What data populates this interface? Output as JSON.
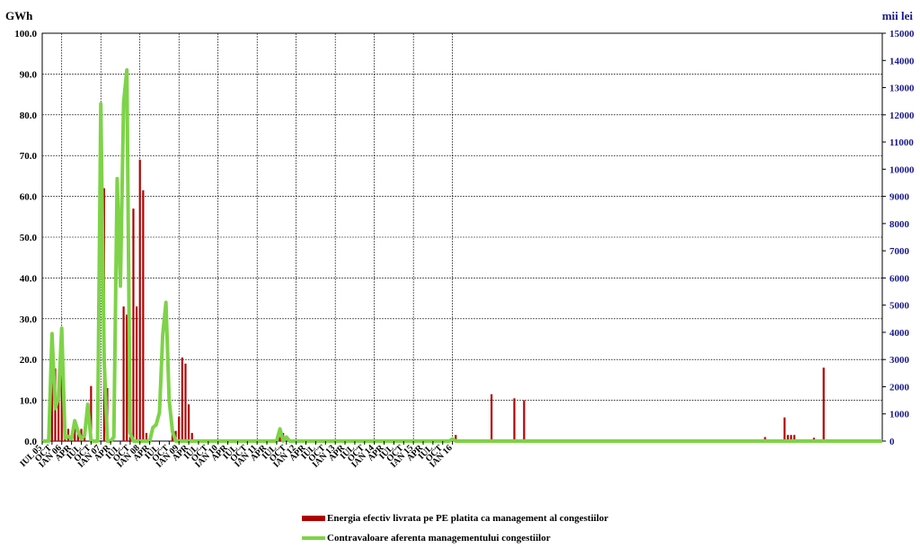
{
  "colors": {
    "bars": "#b00000",
    "line": "#7ed348",
    "right_axis": "#1a1a8c",
    "grid": "#000000"
  },
  "chart_data": {
    "type": "bar+line",
    "title": "",
    "y_left_label": "GWh",
    "y_right_label": "mii lei",
    "y_left_lim": [
      0,
      100
    ],
    "y_right_lim": [
      0,
      15000
    ],
    "y_left_ticks": [
      "0.0",
      "10.0",
      "20.0",
      "30.0",
      "40.0",
      "50.0",
      "60.0",
      "70.0",
      "80.0",
      "90.0",
      "100.0"
    ],
    "y_right_ticks": [
      "0",
      "1000",
      "2000",
      "3000",
      "4000",
      "5000",
      "6000",
      "7000",
      "8000",
      "9000",
      "10000",
      "11000",
      "12000",
      "13000",
      "14000",
      "15000"
    ],
    "x_ticks": [
      {
        "label": "IUL 05",
        "index": 0
      },
      {
        "label": "OCT",
        "index": 3
      },
      {
        "label": "IAN 06",
        "index": 6
      },
      {
        "label": "APR",
        "index": 9
      },
      {
        "label": "IUL",
        "index": 12
      },
      {
        "label": "OCT",
        "index": 15
      },
      {
        "label": "IAN 07",
        "index": 18
      },
      {
        "label": "APR",
        "index": 21
      },
      {
        "label": "IUL",
        "index": 24
      },
      {
        "label": "OCT",
        "index": 27
      },
      {
        "label": "IAN 08",
        "index": 30
      },
      {
        "label": "APR",
        "index": 33
      },
      {
        "label": "IUL",
        "index": 36
      },
      {
        "label": "OCT",
        "index": 39
      },
      {
        "label": "IAN 09",
        "index": 42
      },
      {
        "label": "APR",
        "index": 45
      },
      {
        "label": "IUL",
        "index": 48
      },
      {
        "label": "OCT",
        "index": 51
      },
      {
        "label": "IAN 10",
        "index": 54
      },
      {
        "label": "APR",
        "index": 57
      },
      {
        "label": "IUL",
        "index": 60
      },
      {
        "label": "OCT",
        "index": 63
      },
      {
        "label": "IAN 11",
        "index": 66
      },
      {
        "label": "APR",
        "index": 69
      },
      {
        "label": "IUL",
        "index": 72
      },
      {
        "label": "OCT",
        "index": 75
      },
      {
        "label": "IAN 12",
        "index": 78
      },
      {
        "label": "APR",
        "index": 81
      },
      {
        "label": "IUL",
        "index": 84
      },
      {
        "label": "OCT",
        "index": 87
      },
      {
        "label": "IAN 13",
        "index": 90
      },
      {
        "label": "APR",
        "index": 93
      },
      {
        "label": "IUL",
        "index": 96
      },
      {
        "label": "OCT",
        "index": 99
      },
      {
        "label": "IAN 14",
        "index": 102
      },
      {
        "label": "APR",
        "index": 105
      },
      {
        "label": "IUL",
        "index": 108
      },
      {
        "label": "OCT",
        "index": 111
      },
      {
        "label": "IAN 15",
        "index": 114
      },
      {
        "label": "APR",
        "index": 117
      },
      {
        "label": "IUL",
        "index": 120
      },
      {
        "label": "OCT",
        "index": 123
      },
      {
        "label": "IAN 16",
        "index": 126
      }
    ],
    "vertical_gridlines_at": [
      6,
      18,
      30,
      42,
      54,
      66,
      78,
      90,
      102,
      114,
      126
    ],
    "series": [
      {
        "name": "Energia efectiv livrata pe PE platita ca management al congestiilor",
        "type": "bar",
        "axis": "left",
        "values": [
          0,
          0,
          0,
          20.5,
          17.8,
          11,
          21,
          3,
          3,
          0,
          5,
          3,
          3,
          2,
          0,
          13.5,
          0,
          0,
          0,
          62,
          13,
          0,
          0,
          0,
          0,
          33,
          31,
          1,
          57,
          33,
          69,
          61.5,
          2,
          0,
          0,
          0,
          0,
          0,
          0,
          0,
          2,
          2.5,
          6,
          20.5,
          19,
          9,
          2,
          0,
          0,
          0,
          0,
          0,
          0,
          0,
          0,
          0,
          0,
          0,
          0,
          0,
          0,
          0,
          0,
          0,
          0,
          0,
          0,
          0,
          0,
          0,
          0,
          0,
          0,
          1,
          2,
          0,
          0,
          0,
          0,
          0,
          0,
          0,
          0,
          0,
          0,
          0,
          0,
          0,
          0,
          0,
          0,
          0,
          0,
          0,
          0,
          0,
          0,
          0,
          0,
          0,
          0,
          0,
          0,
          0,
          0,
          0,
          0,
          0,
          0,
          0,
          0,
          0,
          0,
          0,
          0,
          0,
          0,
          0,
          0,
          0,
          0,
          0,
          0,
          0,
          0,
          0,
          0,
          1.5,
          0,
          0,
          0,
          0,
          0,
          0,
          0,
          0,
          0,
          0,
          11.5,
          0,
          0,
          0,
          0,
          0,
          0,
          10.5,
          0,
          0,
          10,
          0,
          0,
          0,
          0,
          0,
          0,
          0,
          0,
          0,
          0,
          0,
          0,
          0,
          0,
          0,
          0,
          0,
          0,
          0,
          0,
          0,
          0,
          0,
          0,
          0,
          0,
          0,
          0,
          0,
          0,
          0,
          0,
          0,
          0,
          0,
          0,
          0,
          0,
          0,
          0,
          0,
          0,
          0,
          0,
          0,
          0,
          0,
          0,
          0,
          0,
          0,
          0,
          0,
          0,
          0,
          0,
          0,
          0,
          0,
          0,
          0,
          0,
          0,
          0,
          0,
          0,
          0,
          0,
          0,
          0,
          0,
          0,
          0,
          1,
          0,
          0,
          0,
          0,
          0,
          5.8,
          1.5,
          1.5,
          1.5,
          0,
          0,
          0,
          0,
          0,
          0.8,
          0,
          0,
          18
        ]
      },
      {
        "name": "Contravaloare aferenta managementului congestiilor",
        "type": "line",
        "axis": "right",
        "values": [
          0,
          0,
          0,
          3950,
          1200,
          1600,
          4150,
          120,
          180,
          80,
          750,
          350,
          80,
          200,
          1350,
          0,
          0,
          0,
          12400,
          3000,
          0,
          0,
          150,
          9650,
          5700,
          12450,
          13650,
          300,
          0,
          0,
          0,
          0,
          0,
          0,
          500,
          600,
          1050,
          3900,
          5100,
          1500,
          350,
          0,
          0,
          0,
          0,
          0,
          0,
          0,
          0,
          0,
          0,
          0,
          0,
          0,
          0,
          0,
          0,
          0,
          0,
          0,
          0,
          0,
          0,
          0,
          0,
          0,
          0,
          0,
          0,
          0,
          0,
          0,
          0,
          450,
          0,
          150,
          0,
          0,
          0,
          0,
          0,
          0,
          0,
          0,
          0,
          0,
          0,
          0,
          0,
          0,
          0,
          0,
          0,
          0,
          0,
          0,
          0,
          0,
          0,
          0,
          0,
          0,
          0,
          0,
          0,
          0,
          0,
          0,
          0,
          0,
          0,
          0,
          0,
          0,
          0,
          0,
          0,
          0,
          0,
          0,
          0,
          0,
          0,
          0,
          0,
          0,
          80,
          0,
          0,
          0,
          0,
          0,
          0,
          0,
          0,
          0,
          0,
          0,
          0,
          0,
          0,
          0,
          0,
          0,
          0,
          0,
          0,
          0,
          0,
          0,
          0,
          0,
          0,
          0,
          0,
          0,
          0,
          0,
          0,
          0,
          0,
          0,
          0,
          0,
          0,
          0,
          0,
          0,
          0,
          0,
          0,
          0,
          0,
          0,
          0,
          0,
          0,
          0,
          0,
          0,
          0,
          0,
          0,
          0,
          0,
          0,
          0,
          0,
          0,
          0,
          0,
          0,
          0,
          0,
          0,
          0,
          0,
          0,
          0,
          0,
          0,
          0,
          0,
          0,
          0,
          0,
          0,
          0,
          0,
          0,
          0,
          0,
          0,
          0,
          0,
          0,
          0,
          0,
          0,
          0,
          0,
          0,
          0,
          0,
          0,
          0,
          0,
          0,
          0,
          0,
          0,
          0,
          0,
          0,
          0,
          0,
          0,
          0,
          0,
          0,
          0,
          0,
          0,
          0,
          0,
          0,
          0,
          0,
          0,
          0,
          0,
          0,
          0,
          0,
          0,
          0,
          0,
          0,
          0
        ]
      }
    ],
    "legend_position": "bottom-center"
  }
}
